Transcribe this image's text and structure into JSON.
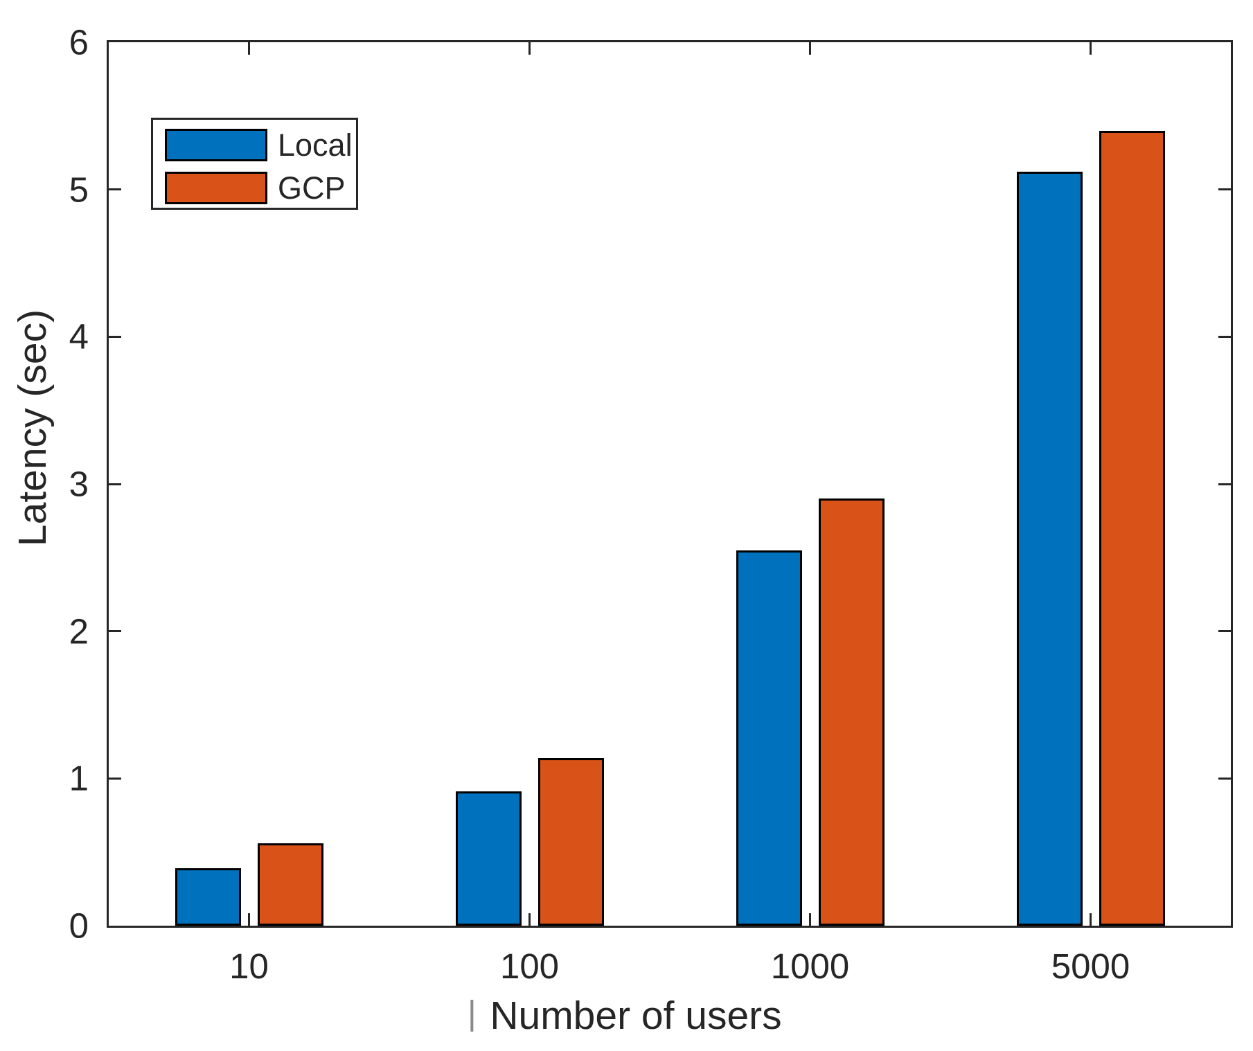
{
  "figure": {
    "background_color": "#ffffff",
    "axis_color": "#262626",
    "bar_edge_color": "#000000"
  },
  "chart_data": {
    "type": "bar",
    "title": "",
    "xlabel": "Number of users",
    "xlabel_cursor_artifact": "|",
    "ylabel": "Latency (sec)",
    "categories": [
      "10",
      "100",
      "1000",
      "5000"
    ],
    "series": [
      {
        "name": "Local",
        "color": "#0072BD",
        "values": [
          0.39,
          0.91,
          2.55,
          5.12
        ]
      },
      {
        "name": "GCP",
        "color": "#D95319",
        "values": [
          0.56,
          1.14,
          2.9,
          5.4
        ]
      }
    ],
    "ylim": [
      0,
      6
    ],
    "yticks": [
      "0",
      "1",
      "2",
      "3",
      "4",
      "5",
      "6"
    ],
    "grid": false,
    "legend_position": "top-left",
    "legend_border": true
  }
}
